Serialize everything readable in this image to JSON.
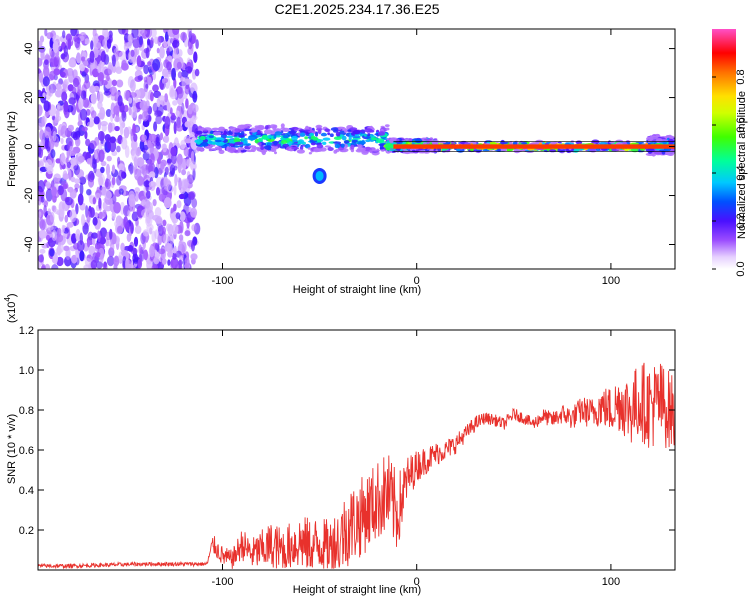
{
  "title": "C2E1.2025.234.17.36.E25",
  "chart_data": [
    {
      "type": "heatmap",
      "title": "C2E1.2025.234.17.36.E25",
      "xlabel": "Height of straight line (km)",
      "ylabel": "Frequency (Hz)",
      "xlim": [
        -195,
        133
      ],
      "ylim": [
        -50,
        48
      ],
      "xticks": [
        -100,
        0,
        100
      ],
      "yticks": [
        -40,
        -20,
        0,
        20,
        40
      ],
      "xtick_labels": [
        "-100",
        "0",
        "100"
      ],
      "ytick_labels": [
        "-40",
        "-20",
        "0",
        "20",
        "40"
      ],
      "noise_region_x": [
        -195,
        -113
      ],
      "signal_line": {
        "freq_hz": 0,
        "x_start": -113,
        "x_end": 133,
        "segments": [
          {
            "x": [
              -113,
              -15
            ],
            "freq": 3,
            "spread": 5,
            "amplitude": 0.45
          },
          {
            "x": [
              -15,
              10
            ],
            "freq": 0.5,
            "spread": 2,
            "amplitude": 0.7
          },
          {
            "x": [
              10,
              120
            ],
            "freq": 0,
            "spread": 1.2,
            "amplitude": 0.85
          },
          {
            "x": [
              120,
              133
            ],
            "freq": 0.5,
            "spread": 3,
            "amplitude": 0.5
          }
        ],
        "blob": {
          "x": -50,
          "freq": -12,
          "amplitude": 0.35
        }
      },
      "colorbar": {
        "label": "Normalized spectral amplitude",
        "range": [
          0.0,
          1.0
        ],
        "ticks": [
          0.0,
          0.2,
          0.4,
          0.6,
          0.8
        ],
        "tick_labels": [
          "0.0",
          "0.2",
          "0.4",
          "0.6",
          "0.8"
        ],
        "colors": [
          "#ffffff",
          "#c4a0ff",
          "#8a2be2",
          "#3c14ff",
          "#00d0ff",
          "#00ff70",
          "#b0ff00",
          "#ffe000",
          "#ff6a00",
          "#ff0000",
          "#ff40c0"
        ]
      }
    },
    {
      "type": "line",
      "xlabel": "Height of straight line (km)",
      "ylabel": "SNR (10 * v/v)",
      "scale_label": "(x10",
      "scale_exp": "4",
      "scale_close": ")",
      "xlim": [
        -195,
        133
      ],
      "ylim": [
        0,
        1.2
      ],
      "xticks": [
        -100,
        0,
        100
      ],
      "yticks": [
        0.2,
        0.4,
        0.6,
        0.8,
        1.0,
        1.2
      ],
      "xtick_labels": [
        "-100",
        "0",
        "100"
      ],
      "ytick_labels": [
        "0.2",
        "0.4",
        "0.6",
        "0.8",
        "1.0",
        "1.2"
      ],
      "color": "#e8312c",
      "series": [
        {
          "name": "SNR",
          "x": [
            -195,
            -180,
            -160,
            -140,
            -120,
            -108,
            -105,
            -100,
            -95,
            -90,
            -85,
            -80,
            -75,
            -70,
            -65,
            -60,
            -55,
            -50,
            -45,
            -40,
            -35,
            -30,
            -25,
            -20,
            -15,
            -10,
            -5,
            0,
            5,
            10,
            15,
            20,
            25,
            30,
            35,
            40,
            45,
            50,
            55,
            60,
            65,
            70,
            75,
            80,
            85,
            90,
            95,
            100,
            105,
            110,
            115,
            120,
            125,
            130,
            133
          ],
          "values": [
            0.02,
            0.02,
            0.025,
            0.03,
            0.03,
            0.03,
            0.13,
            0.07,
            0.05,
            0.13,
            0.08,
            0.1,
            0.12,
            0.1,
            0.12,
            0.14,
            0.12,
            0.13,
            0.11,
            0.15,
            0.22,
            0.25,
            0.3,
            0.35,
            0.38,
            0.28,
            0.45,
            0.52,
            0.55,
            0.58,
            0.6,
            0.63,
            0.68,
            0.73,
            0.76,
            0.75,
            0.73,
            0.78,
            0.76,
            0.73,
            0.77,
            0.75,
            0.78,
            0.76,
            0.8,
            0.78,
            0.82,
            0.8,
            0.84,
            0.8,
            0.85,
            0.82,
            0.84,
            0.8,
            0.78
          ],
          "noise_amplitude": [
            0.01,
            0.01,
            0.01,
            0.01,
            0.01,
            0.01,
            0.05,
            0.05,
            0.05,
            0.08,
            0.08,
            0.1,
            0.12,
            0.12,
            0.12,
            0.14,
            0.14,
            0.14,
            0.14,
            0.18,
            0.2,
            0.2,
            0.2,
            0.2,
            0.22,
            0.2,
            0.12,
            0.08,
            0.07,
            0.06,
            0.05,
            0.05,
            0.04,
            0.04,
            0.03,
            0.03,
            0.03,
            0.03,
            0.03,
            0.03,
            0.04,
            0.04,
            0.05,
            0.06,
            0.07,
            0.08,
            0.1,
            0.12,
            0.15,
            0.18,
            0.2,
            0.22,
            0.22,
            0.2,
            0.2
          ]
        }
      ]
    }
  ]
}
